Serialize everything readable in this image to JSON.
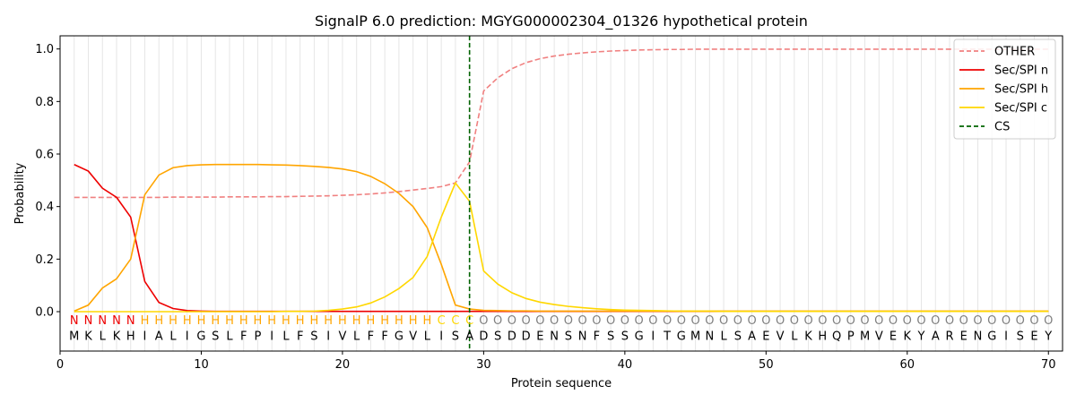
{
  "chart_data": {
    "type": "line",
    "title": "SignalP 6.0 prediction: MGYG000002304_01326 hypothetical protein",
    "xlabel": "Protein sequence",
    "ylabel": "Probability",
    "xlim": [
      0,
      71
    ],
    "ylim": [
      -0.15,
      1.05
    ],
    "x_ticks": [
      0,
      10,
      20,
      30,
      40,
      50,
      60,
      70
    ],
    "x_tick_labels": [
      "0",
      "10",
      "20",
      "30",
      "40",
      "50",
      "60",
      "70"
    ],
    "y_ticks": [
      0.0,
      0.2,
      0.4,
      0.6,
      0.8,
      1.0
    ],
    "y_tick_labels": [
      "0.0",
      "0.2",
      "0.4",
      "0.6",
      "0.8",
      "1.0"
    ],
    "grid": "vertical lines at each residue",
    "legend_position": "top-right",
    "x": [
      1,
      2,
      3,
      4,
      5,
      6,
      7,
      8,
      9,
      10,
      11,
      12,
      13,
      14,
      15,
      16,
      17,
      18,
      19,
      20,
      21,
      22,
      23,
      24,
      25,
      26,
      27,
      28,
      29,
      30,
      31,
      32,
      33,
      34,
      35,
      36,
      37,
      38,
      39,
      40,
      41,
      42,
      43,
      44,
      45,
      46,
      47,
      48,
      49,
      50,
      51,
      52,
      53,
      54,
      55,
      56,
      57,
      58,
      59,
      60,
      61,
      62,
      63,
      64,
      65,
      66,
      67,
      68,
      69,
      70
    ],
    "series": [
      {
        "name": "OTHER",
        "color": "#f08080",
        "dash": "dashed",
        "values": [
          0.435,
          0.435,
          0.435,
          0.435,
          0.435,
          0.435,
          0.435,
          0.436,
          0.436,
          0.436,
          0.436,
          0.437,
          0.437,
          0.437,
          0.438,
          0.438,
          0.439,
          0.44,
          0.441,
          0.443,
          0.445,
          0.448,
          0.452,
          0.457,
          0.463,
          0.469,
          0.476,
          0.49,
          0.57,
          0.84,
          0.89,
          0.925,
          0.948,
          0.963,
          0.973,
          0.98,
          0.985,
          0.989,
          0.992,
          0.994,
          0.996,
          0.997,
          0.998,
          0.998,
          0.999,
          0.999,
          0.999,
          0.999,
          0.999,
          0.999,
          0.999,
          0.999,
          0.999,
          0.999,
          0.999,
          0.999,
          0.999,
          0.999,
          0.999,
          0.999,
          0.999,
          0.999,
          0.999,
          0.999,
          0.999,
          0.999,
          0.999,
          0.999,
          0.999,
          0.999
        ]
      },
      {
        "name": "Sec/SPI n",
        "color": "#ee0000",
        "dash": "solid",
        "values": [
          0.56,
          0.535,
          0.47,
          0.435,
          0.36,
          0.115,
          0.035,
          0.012,
          0.004,
          0.002,
          0.001,
          0.001,
          0.001,
          0.001,
          0.001,
          0.001,
          0.001,
          0.001,
          0.001,
          0.001,
          0.001,
          0.001,
          0.001,
          0.001,
          0.001,
          0.001,
          0.001,
          0.001,
          0.001,
          0.001,
          0.001,
          0.001,
          0.001,
          0.001,
          0.001,
          0.001,
          0.001,
          0.001,
          0.001,
          0.001,
          0.001,
          0.001,
          0.001,
          0.001,
          0.001,
          0.001,
          0.001,
          0.001,
          0.001,
          0.001,
          0.001,
          0.001,
          0.001,
          0.001,
          0.001,
          0.001,
          0.001,
          0.001,
          0.001,
          0.001,
          0.001,
          0.001,
          0.001,
          0.001,
          0.001,
          0.001,
          0.001,
          0.001,
          0.001,
          0.001
        ]
      },
      {
        "name": "Sec/SPI h",
        "color": "#ffa500",
        "dash": "solid",
        "values": [
          0.002,
          0.025,
          0.09,
          0.125,
          0.2,
          0.445,
          0.52,
          0.548,
          0.556,
          0.559,
          0.56,
          0.56,
          0.56,
          0.56,
          0.559,
          0.558,
          0.556,
          0.553,
          0.549,
          0.543,
          0.533,
          0.515,
          0.487,
          0.45,
          0.4,
          0.32,
          0.18,
          0.025,
          0.01,
          0.005,
          0.004,
          0.003,
          0.003,
          0.002,
          0.002,
          0.002,
          0.002,
          0.002,
          0.002,
          0.002,
          0.002,
          0.002,
          0.002,
          0.002,
          0.002,
          0.002,
          0.002,
          0.002,
          0.002,
          0.002,
          0.002,
          0.002,
          0.002,
          0.002,
          0.002,
          0.002,
          0.002,
          0.002,
          0.002,
          0.002,
          0.002,
          0.002,
          0.002,
          0.002,
          0.002,
          0.002,
          0.002,
          0.002,
          0.002,
          0.002
        ]
      },
      {
        "name": "Sec/SPI c",
        "color": "#ffd700",
        "dash": "solid",
        "values": [
          0.0,
          0.0,
          0.0,
          0.0,
          0.0,
          0.0,
          0.0,
          0.0,
          0.0,
          0.0,
          0.0,
          0.0,
          0.0,
          0.0,
          0.0,
          0.001,
          0.001,
          0.002,
          0.005,
          0.01,
          0.018,
          0.033,
          0.056,
          0.088,
          0.13,
          0.21,
          0.36,
          0.49,
          0.42,
          0.155,
          0.105,
          0.072,
          0.05,
          0.036,
          0.027,
          0.02,
          0.015,
          0.011,
          0.008,
          0.006,
          0.005,
          0.004,
          0.003,
          0.002,
          0.002,
          0.002,
          0.001,
          0.001,
          0.001,
          0.001,
          0.001,
          0.001,
          0.001,
          0.001,
          0.001,
          0.001,
          0.001,
          0.001,
          0.001,
          0.001,
          0.001,
          0.001,
          0.001,
          0.001,
          0.001,
          0.001,
          0.001,
          0.001,
          0.001,
          0.001
        ]
      }
    ],
    "cs": {
      "name": "CS",
      "x": 29,
      "color": "#006400",
      "dash": "dashed"
    },
    "sequence": [
      "M",
      "K",
      "L",
      "K",
      "H",
      "I",
      "A",
      "L",
      "I",
      "G",
      "S",
      "L",
      "F",
      "P",
      "I",
      "L",
      "F",
      "S",
      "I",
      "V",
      "L",
      "F",
      "F",
      "G",
      "V",
      "L",
      "I",
      "S",
      "A",
      "D",
      "S",
      "D",
      "D",
      "E",
      "N",
      "S",
      "N",
      "F",
      "S",
      "S",
      "G",
      "I",
      "T",
      "G",
      "M",
      "N",
      "L",
      "S",
      "A",
      "E",
      "V",
      "L",
      "K",
      "H",
      "Q",
      "P",
      "M",
      "V",
      "E",
      "K",
      "Y",
      "A",
      "R",
      "E",
      "N",
      "G",
      "I",
      "S",
      "E",
      "Y"
    ],
    "labels": [
      "N",
      "N",
      "N",
      "N",
      "N",
      "H",
      "H",
      "H",
      "H",
      "H",
      "H",
      "H",
      "H",
      "H",
      "H",
      "H",
      "H",
      "H",
      "H",
      "H",
      "H",
      "H",
      "H",
      "H",
      "H",
      "H",
      "C",
      "C",
      "C",
      "O",
      "O",
      "O",
      "O",
      "O",
      "O",
      "O",
      "O",
      "O",
      "O",
      "O",
      "O",
      "O",
      "O",
      "O",
      "O",
      "O",
      "O",
      "O",
      "O",
      "O",
      "O",
      "O",
      "O",
      "O",
      "O",
      "O",
      "O",
      "O",
      "O",
      "O",
      "O",
      "O",
      "O",
      "O",
      "O",
      "O",
      "O",
      "O",
      "O",
      "O"
    ],
    "label_colors": {
      "N": "#ee0000",
      "H": "#ffa500",
      "C": "#ffd700",
      "O": "#808080"
    },
    "sequence_color": "#000000"
  }
}
